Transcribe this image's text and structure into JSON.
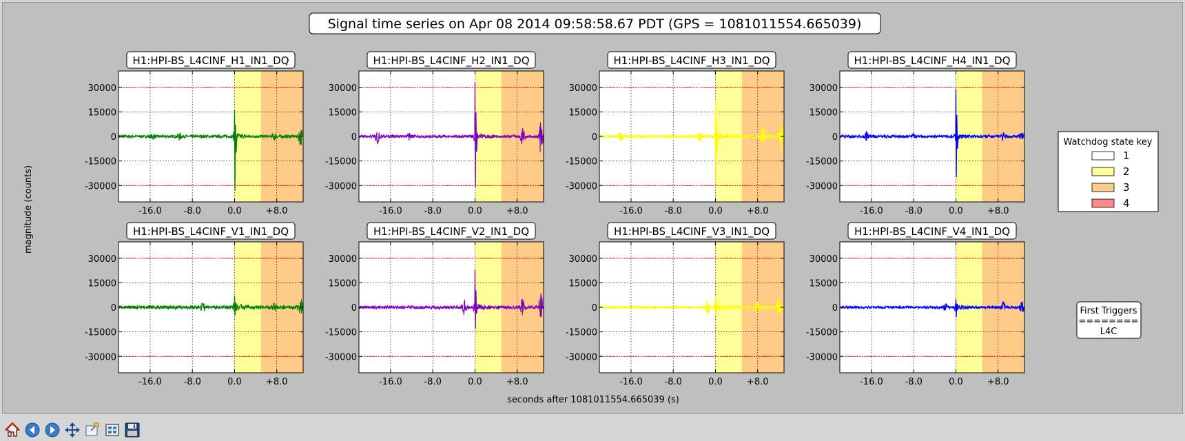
{
  "figure": {
    "title": "Signal time series on Apr 08 2014 09:58:58.67 PDT (GPS = 1081011554.665039)",
    "ylabel": "magnitude (counts)",
    "xlabel": "seconds after 1081011554.665039 (s)"
  },
  "legend": {
    "title": "Watchdog state key",
    "entries": [
      {
        "label": "1",
        "color": "#ffffff"
      },
      {
        "label": "2",
        "color": "#ffff99"
      },
      {
        "label": "3",
        "color": "#ffcc88"
      },
      {
        "label": "4",
        "color": "#ff8888"
      }
    ]
  },
  "triggers": {
    "title": "First Triggers",
    "separator": "========",
    "value": "L4C"
  },
  "toolbar": {
    "buttons": [
      {
        "name": "home-button",
        "icon": "home-icon"
      },
      {
        "name": "back-button",
        "icon": "arrow-left-icon"
      },
      {
        "name": "forward-button",
        "icon": "arrow-right-icon"
      },
      {
        "name": "pan-button",
        "icon": "move-icon"
      },
      {
        "name": "zoom-button",
        "icon": "zoom-rect-icon"
      },
      {
        "name": "configure-subplots-button",
        "icon": "subplots-icon"
      },
      {
        "name": "save-button",
        "icon": "floppy-icon"
      }
    ]
  },
  "chart_data": {
    "type": "line",
    "xlim": [
      -22,
      13
    ],
    "ylim": [
      -40000,
      40000
    ],
    "xticks": [
      -16,
      -8,
      0,
      8
    ],
    "xtick_labels": [
      "-16.0",
      "-8.0",
      "0.0",
      "+8.0"
    ],
    "yticks": [
      30000,
      15000,
      0,
      -15000,
      -30000
    ],
    "ytick_labels": [
      "30000",
      "15000",
      "0",
      "-15000",
      "-30000"
    ],
    "grid": true,
    "thresholds": [
      30000,
      -30000
    ],
    "threshold_color": "#ff0000",
    "state_regions": [
      {
        "state": "2",
        "x": [
          0,
          5
        ],
        "color": "#ffff99"
      },
      {
        "state": "3",
        "x": [
          5,
          13
        ],
        "color": "#ffcc88"
      }
    ],
    "panels": [
      {
        "title": "H1:HPI-BS_L4CINF_H1_IN1_DQ",
        "color": "#008000",
        "row": 0,
        "col": 0,
        "noise": 900,
        "peak_max": 16000,
        "peak_min": -33000,
        "bursts": [
          {
            "t": -15.5,
            "a": 1500
          },
          {
            "t": -10.5,
            "a": 1800
          },
          {
            "t": 7.5,
            "a": 2000
          },
          {
            "t": 12.5,
            "a": 5500
          }
        ]
      },
      {
        "title": "H1:HPI-BS_L4CINF_H2_IN1_DQ",
        "color": "#8000c0",
        "row": 0,
        "col": 1,
        "noise": 900,
        "peak_max": 33000,
        "peak_min": -31000,
        "bursts": [
          {
            "t": -18.5,
            "a": 4000
          },
          {
            "t": -12.5,
            "a": 2000
          },
          {
            "t": 9,
            "a": 6000
          },
          {
            "t": 12.5,
            "a": 11000
          }
        ]
      },
      {
        "title": "H1:HPI-BS_L4CINF_H3_IN1_DQ",
        "color": "#ffff00",
        "row": 0,
        "col": 2,
        "noise": 900,
        "peak_max": 22000,
        "peak_min": -30000,
        "bursts": [
          {
            "t": -18,
            "a": 3000
          },
          {
            "t": -3,
            "a": 3500
          },
          {
            "t": 9,
            "a": 7000
          },
          {
            "t": 12.5,
            "a": 10000
          }
        ]
      },
      {
        "title": "H1:HPI-BS_L4CINF_H4_IN1_DQ",
        "color": "#0000ff",
        "row": 0,
        "col": 3,
        "noise": 900,
        "peak_max": 29000,
        "peak_min": -25000,
        "bursts": [
          {
            "t": -17,
            "a": 3000
          },
          {
            "t": -8,
            "a": 1500
          },
          {
            "t": 9,
            "a": 2500
          },
          {
            "t": 12.5,
            "a": 4000
          }
        ]
      },
      {
        "title": "H1:HPI-BS_L4CINF_V1_IN1_DQ",
        "color": "#008000",
        "row": 1,
        "col": 0,
        "noise": 1100,
        "peak_max": 7000,
        "peak_min": -5000,
        "bursts": [
          {
            "t": -6,
            "a": 2500
          },
          {
            "t": 7.5,
            "a": 2500
          },
          {
            "t": 12.5,
            "a": 5000
          }
        ]
      },
      {
        "title": "H1:HPI-BS_L4CINF_V2_IN1_DQ",
        "color": "#8000c0",
        "row": 1,
        "col": 1,
        "noise": 1000,
        "peak_max": 23000,
        "peak_min": -13000,
        "bursts": [
          {
            "t": -2,
            "a": 4000
          },
          {
            "t": 9,
            "a": 5000
          },
          {
            "t": 12.5,
            "a": 9000
          }
        ]
      },
      {
        "title": "H1:HPI-BS_L4CINF_V3_IN1_DQ",
        "color": "#ffff00",
        "row": 1,
        "col": 2,
        "noise": 800,
        "peak_max": 7000,
        "peak_min": -5000,
        "bursts": [
          {
            "t": -1.5,
            "a": 3500
          },
          {
            "t": 8,
            "a": 3000
          },
          {
            "t": 12,
            "a": 6000
          }
        ]
      },
      {
        "title": "H1:HPI-BS_L4CINF_V4_IN1_DQ",
        "color": "#0000ff",
        "row": 1,
        "col": 3,
        "noise": 800,
        "peak_max": 5000,
        "peak_min": -6000,
        "bursts": [
          {
            "t": -2,
            "a": 2000
          },
          {
            "t": 9,
            "a": 3000
          },
          {
            "t": 12.5,
            "a": 3500
          }
        ]
      }
    ]
  }
}
